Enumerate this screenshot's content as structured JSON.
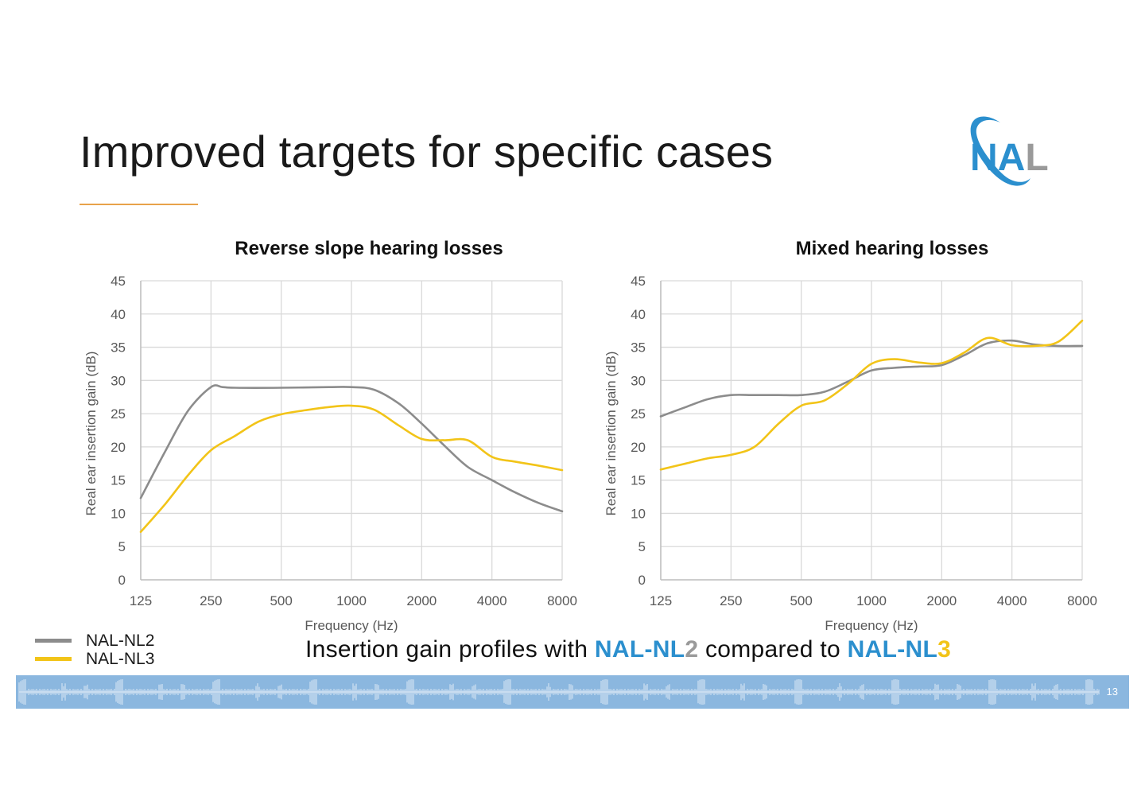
{
  "slide": {
    "title": "Improved targets for specific cases",
    "page_number": "13",
    "accent_color": "#e8a24a"
  },
  "logo": {
    "text": "NAL",
    "colors": [
      "#2b8fce",
      "#9a9a9a"
    ]
  },
  "legend": [
    {
      "label": "NAL-NL2",
      "color": "#8c8c8c"
    },
    {
      "label": "NAL-NL3",
      "color": "#f2c418"
    }
  ],
  "caption": {
    "prefix": "Insertion gain profiles with ",
    "nl2_main": "NAL-NL",
    "nl2_num": "2",
    "middle": " compared to ",
    "nl3_main": "NAL-NL",
    "nl3_num": "3",
    "blue": "#2b8fce",
    "grey": "#9a9a9a",
    "yellow": "#f2c418"
  },
  "footer": {
    "band_color": "#8bb7df"
  },
  "chart_data": [
    {
      "type": "line",
      "title": "Reverse slope hearing losses",
      "xlabel": "Frequency (Hz)",
      "ylabel": "Real ear insertion gain (dB)",
      "x_scale": "log2",
      "categories": [
        "125",
        "250",
        "500",
        "1000",
        "2000",
        "4000",
        "8000"
      ],
      "ylim": [
        0,
        45
      ],
      "yticks": [
        0,
        5,
        10,
        15,
        20,
        25,
        30,
        35,
        40,
        45
      ],
      "grid": true,
      "series": [
        {
          "name": "NAL-NL2",
          "color": "#8c8c8c",
          "x": [
            125,
            160,
            200,
            250,
            280,
            315,
            500,
            800,
            1000,
            1250,
            1600,
            2000,
            2500,
            3150,
            4000,
            5000,
            6300,
            8000
          ],
          "y": [
            12.3,
            19.5,
            25.5,
            29.0,
            29.0,
            28.9,
            28.9,
            29.0,
            29.0,
            28.6,
            26.5,
            23.5,
            20.2,
            17.0,
            15.0,
            13.2,
            11.6,
            10.3
          ]
        },
        {
          "name": "NAL-NL3",
          "color": "#f2c418",
          "x": [
            125,
            160,
            200,
            250,
            315,
            400,
            500,
            630,
            800,
            1000,
            1250,
            1600,
            2000,
            2500,
            3150,
            4000,
            5000,
            6300,
            8000
          ],
          "y": [
            7.2,
            11.5,
            15.8,
            19.5,
            21.6,
            23.8,
            24.9,
            25.5,
            26.0,
            26.2,
            25.6,
            23.2,
            21.2,
            21.0,
            21.0,
            18.5,
            17.8,
            17.2,
            16.5
          ]
        }
      ]
    },
    {
      "type": "line",
      "title": "Mixed hearing losses",
      "xlabel": "Frequency (Hz)",
      "ylabel": "Real ear insertion gain (dB)",
      "x_scale": "log2",
      "categories": [
        "125",
        "250",
        "500",
        "1000",
        "2000",
        "4000",
        "8000"
      ],
      "ylim": [
        0,
        45
      ],
      "yticks": [
        0,
        5,
        10,
        15,
        20,
        25,
        30,
        35,
        40,
        45
      ],
      "grid": true,
      "series": [
        {
          "name": "NAL-NL2",
          "color": "#8c8c8c",
          "x": [
            125,
            160,
            200,
            250,
            315,
            400,
            500,
            630,
            800,
            1000,
            1250,
            1600,
            2000,
            2500,
            3150,
            4000,
            5000,
            6300,
            8000
          ],
          "y": [
            24.6,
            26.0,
            27.2,
            27.8,
            27.8,
            27.8,
            27.8,
            28.3,
            29.9,
            31.5,
            31.9,
            32.1,
            32.3,
            33.8,
            35.6,
            36.0,
            35.4,
            35.2,
            35.2
          ]
        },
        {
          "name": "NAL-NL3",
          "color": "#f2c418",
          "x": [
            125,
            160,
            200,
            250,
            315,
            400,
            500,
            630,
            800,
            1000,
            1250,
            1600,
            2000,
            2500,
            3150,
            4000,
            5000,
            6300,
            8000
          ],
          "y": [
            16.6,
            17.5,
            18.3,
            18.8,
            20.0,
            23.5,
            26.2,
            27.0,
            29.6,
            32.5,
            33.2,
            32.7,
            32.6,
            34.2,
            36.4,
            35.3,
            35.2,
            35.8,
            39.0
          ]
        }
      ]
    }
  ]
}
